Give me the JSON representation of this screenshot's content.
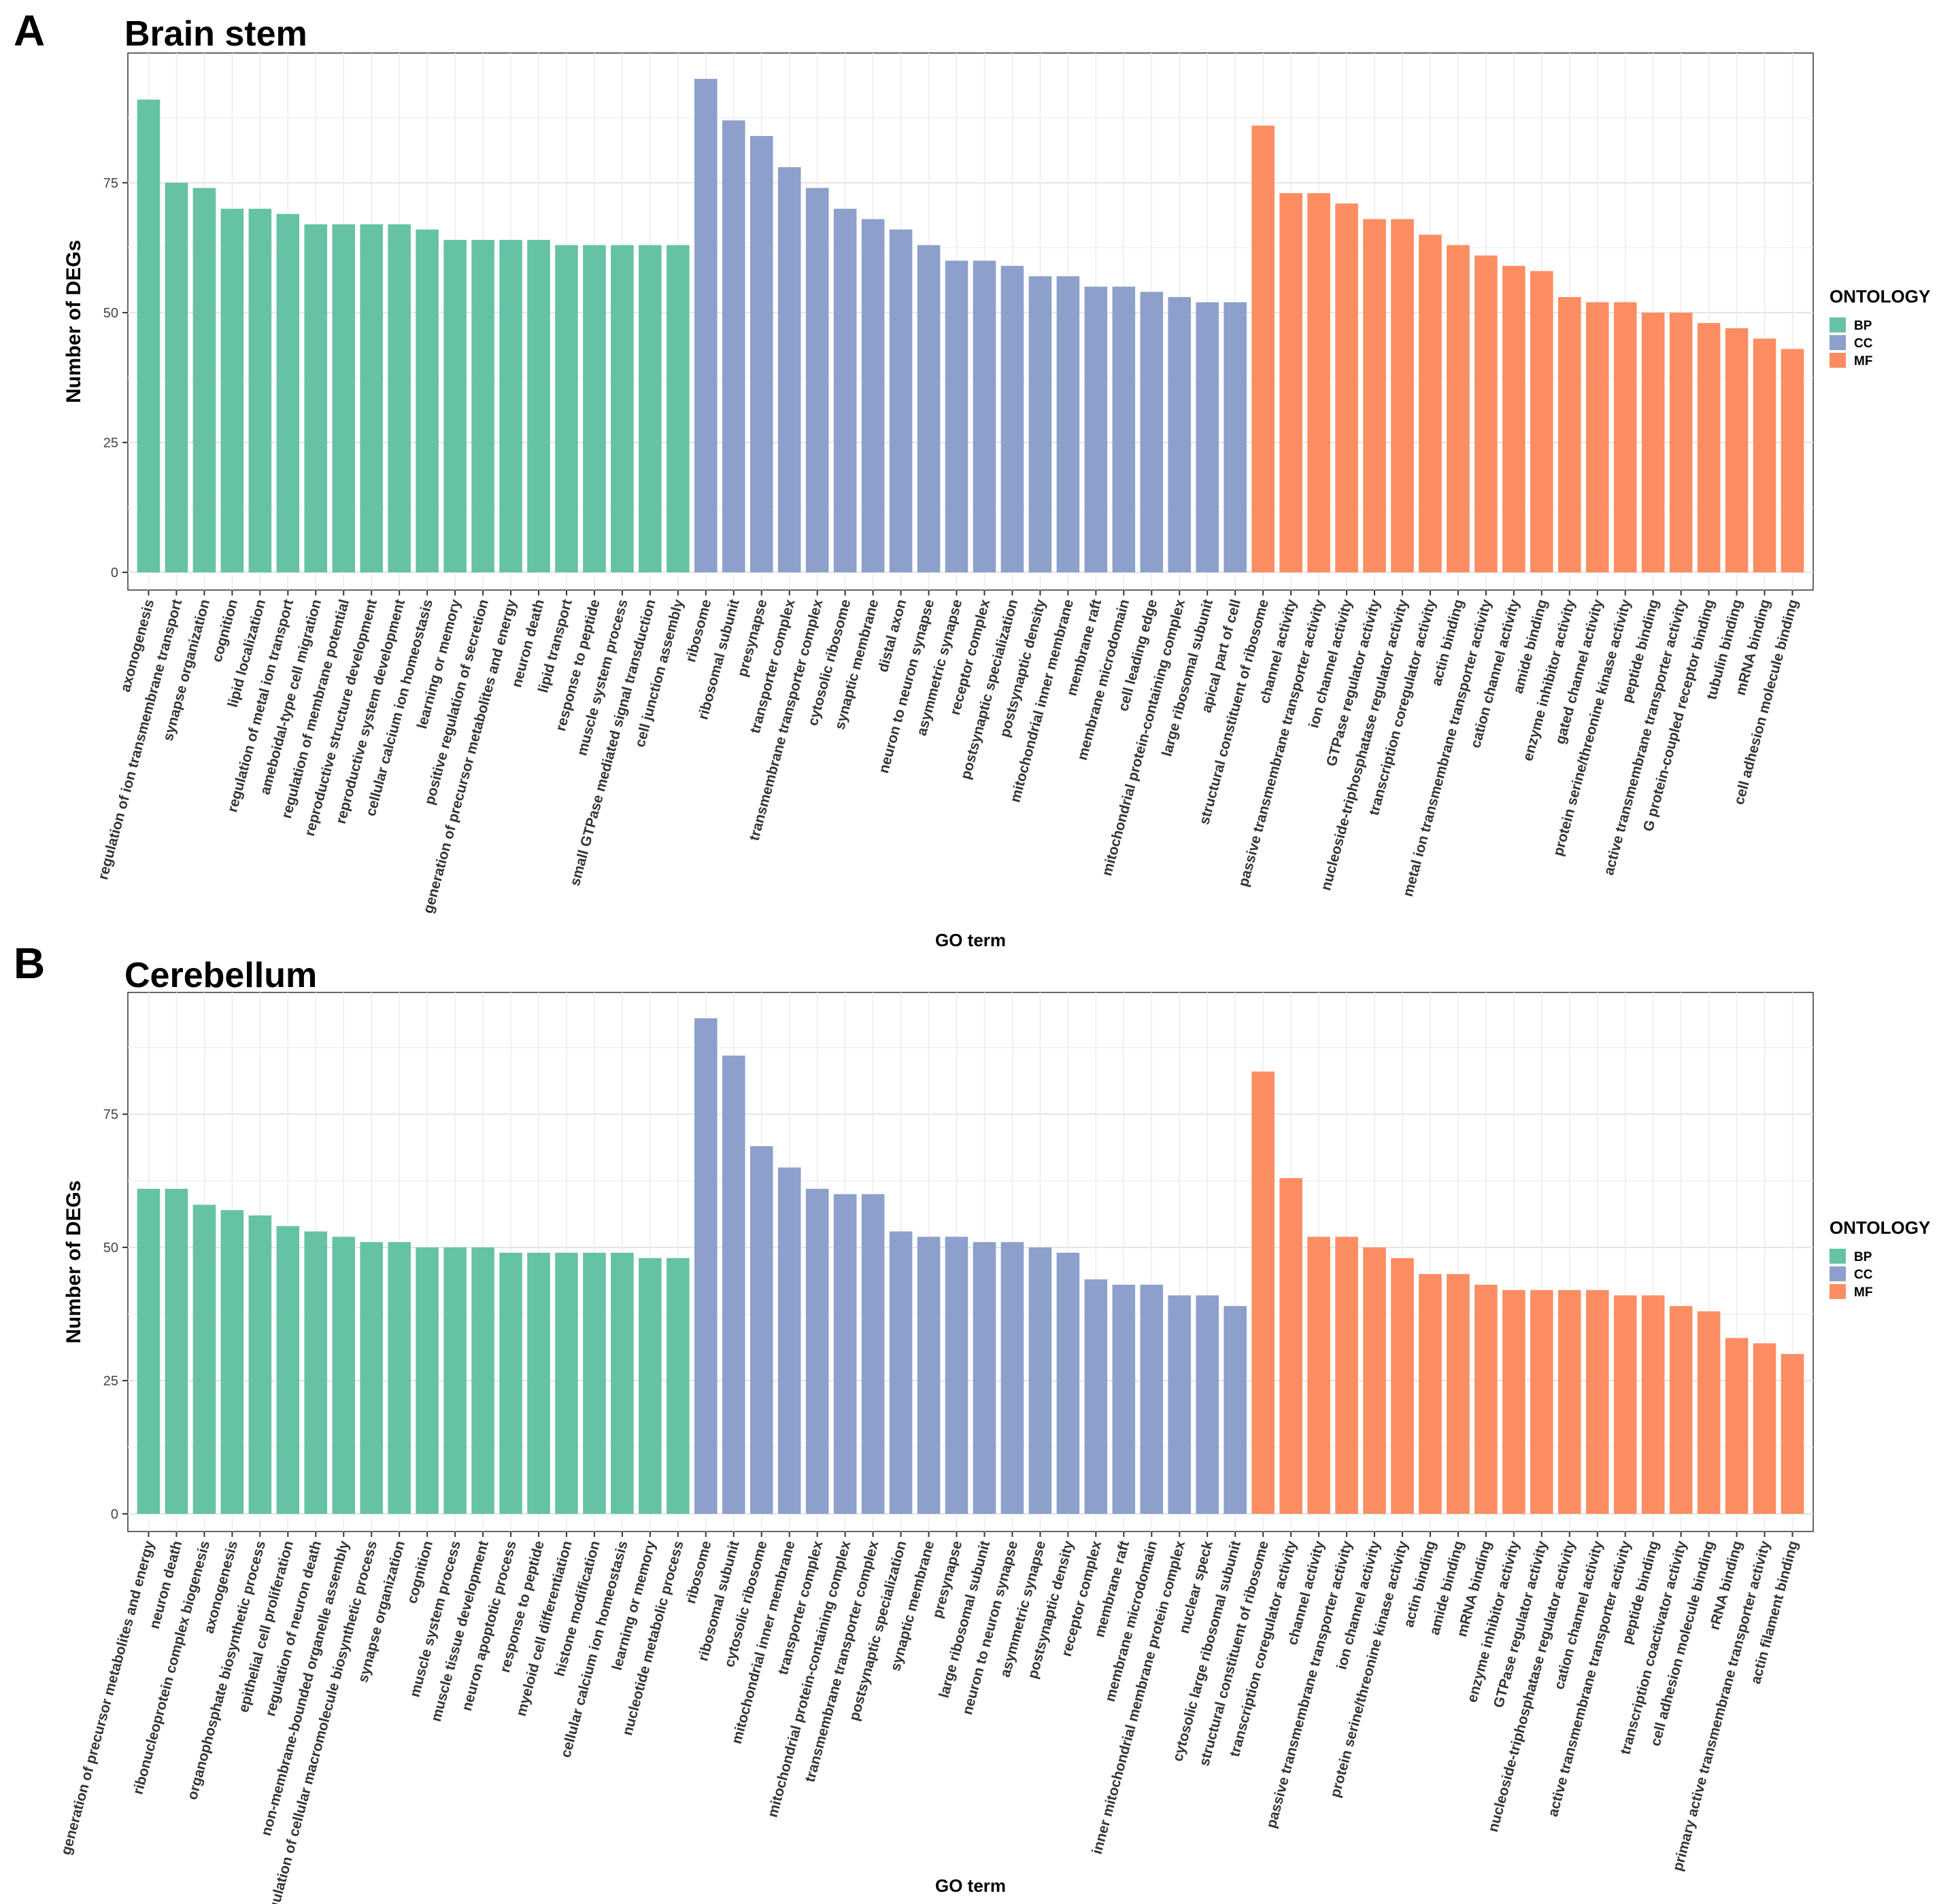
{
  "colors": {
    "BP": "#66c2a5",
    "CC": "#8da0cb",
    "MF": "#fc8d62"
  },
  "chart_data": [
    {
      "panel": "A",
      "type": "bar",
      "title": "Brain stem",
      "xlabel": "GO term",
      "ylabel": "Number of DEGs",
      "ylim": [
        0,
        95
      ],
      "yticks": [
        0,
        25,
        50,
        75
      ],
      "legend": {
        "title": "ONTOLOGY",
        "entries": [
          "BP",
          "CC",
          "MF"
        ],
        "position": "right"
      },
      "grid": true,
      "bars": [
        {
          "category": "axonogenesis",
          "ontology": "BP",
          "value": 91
        },
        {
          "category": "regulation of ion transmembrane transport",
          "ontology": "BP",
          "value": 75
        },
        {
          "category": "synapse organization",
          "ontology": "BP",
          "value": 74
        },
        {
          "category": "cognition",
          "ontology": "BP",
          "value": 70
        },
        {
          "category": "lipid localization",
          "ontology": "BP",
          "value": 70
        },
        {
          "category": "regulation of metal ion transport",
          "ontology": "BP",
          "value": 69
        },
        {
          "category": "ameboidal-type cell migration",
          "ontology": "BP",
          "value": 67
        },
        {
          "category": "regulation of membrane potential",
          "ontology": "BP",
          "value": 67
        },
        {
          "category": "reproductive structure development",
          "ontology": "BP",
          "value": 67
        },
        {
          "category": "reproductive system development",
          "ontology": "BP",
          "value": 67
        },
        {
          "category": "cellular calcium ion homeostasis",
          "ontology": "BP",
          "value": 66
        },
        {
          "category": "learning or memory",
          "ontology": "BP",
          "value": 64
        },
        {
          "category": "positive regulation of secretion",
          "ontology": "BP",
          "value": 64
        },
        {
          "category": "generation of precursor metabolites and energy",
          "ontology": "BP",
          "value": 64
        },
        {
          "category": "neuron death",
          "ontology": "BP",
          "value": 64
        },
        {
          "category": "lipid transport",
          "ontology": "BP",
          "value": 63
        },
        {
          "category": "response to peptide",
          "ontology": "BP",
          "value": 63
        },
        {
          "category": "muscle system process",
          "ontology": "BP",
          "value": 63
        },
        {
          "category": "small GTPase mediated signal transduction",
          "ontology": "BP",
          "value": 63
        },
        {
          "category": "cell junction assembly",
          "ontology": "BP",
          "value": 63
        },
        {
          "category": "ribosome",
          "ontology": "CC",
          "value": 95
        },
        {
          "category": "ribosomal subunit",
          "ontology": "CC",
          "value": 87
        },
        {
          "category": "presynapse",
          "ontology": "CC",
          "value": 84
        },
        {
          "category": "transporter complex",
          "ontology": "CC",
          "value": 78
        },
        {
          "category": "transmembrane transporter complex",
          "ontology": "CC",
          "value": 74
        },
        {
          "category": "cytosolic ribosome",
          "ontology": "CC",
          "value": 70
        },
        {
          "category": "synaptic membrane",
          "ontology": "CC",
          "value": 68
        },
        {
          "category": "distal axon",
          "ontology": "CC",
          "value": 66
        },
        {
          "category": "neuron to neuron synapse",
          "ontology": "CC",
          "value": 63
        },
        {
          "category": "asymmetric synapse",
          "ontology": "CC",
          "value": 60
        },
        {
          "category": "receptor complex",
          "ontology": "CC",
          "value": 60
        },
        {
          "category": "postsynaptic specialization",
          "ontology": "CC",
          "value": 59
        },
        {
          "category": "postsynaptic density",
          "ontology": "CC",
          "value": 57
        },
        {
          "category": "mitochondrial inner membrane",
          "ontology": "CC",
          "value": 57
        },
        {
          "category": "membrane raft",
          "ontology": "CC",
          "value": 55
        },
        {
          "category": "membrane microdomain",
          "ontology": "CC",
          "value": 55
        },
        {
          "category": "cell leading edge",
          "ontology": "CC",
          "value": 54
        },
        {
          "category": "mitochondrial protein-containing complex",
          "ontology": "CC",
          "value": 53
        },
        {
          "category": "large ribosomal subunit",
          "ontology": "CC",
          "value": 52
        },
        {
          "category": "apical part of cell",
          "ontology": "CC",
          "value": 52
        },
        {
          "category": "structural constituent of ribosome",
          "ontology": "MF",
          "value": 86
        },
        {
          "category": "channel activity",
          "ontology": "MF",
          "value": 73
        },
        {
          "category": "passive transmembrane transporter activity",
          "ontology": "MF",
          "value": 73
        },
        {
          "category": "ion channel activity",
          "ontology": "MF",
          "value": 71
        },
        {
          "category": "GTPase regulator activity",
          "ontology": "MF",
          "value": 68
        },
        {
          "category": "nucleoside-triphosphatase regulator activity",
          "ontology": "MF",
          "value": 68
        },
        {
          "category": "transcription coregulator activity",
          "ontology": "MF",
          "value": 65
        },
        {
          "category": "actin binding",
          "ontology": "MF",
          "value": 63
        },
        {
          "category": "metal ion transmembrane transporter activity",
          "ontology": "MF",
          "value": 61
        },
        {
          "category": "cation channel activity",
          "ontology": "MF",
          "value": 59
        },
        {
          "category": "amide binding",
          "ontology": "MF",
          "value": 58
        },
        {
          "category": "enzyme inhibitor activity",
          "ontology": "MF",
          "value": 53
        },
        {
          "category": "gated channel activity",
          "ontology": "MF",
          "value": 52
        },
        {
          "category": "protein serine/threonine kinase activity",
          "ontology": "MF",
          "value": 52
        },
        {
          "category": "peptide binding",
          "ontology": "MF",
          "value": 50
        },
        {
          "category": "active transmembrane transporter activity",
          "ontology": "MF",
          "value": 50
        },
        {
          "category": "G protein-coupled receptor binding",
          "ontology": "MF",
          "value": 48
        },
        {
          "category": "tubulin binding",
          "ontology": "MF",
          "value": 47
        },
        {
          "category": "mRNA binding",
          "ontology": "MF",
          "value": 45
        },
        {
          "category": "cell adhesion molecule binding",
          "ontology": "MF",
          "value": 43
        }
      ]
    },
    {
      "panel": "B",
      "type": "bar",
      "title": "Cerebellum",
      "xlabel": "GO term",
      "ylabel": "Number of DEGs",
      "ylim": [
        0,
        93
      ],
      "yticks": [
        0,
        25,
        50,
        75
      ],
      "legend": {
        "title": "ONTOLOGY",
        "entries": [
          "BP",
          "CC",
          "MF"
        ],
        "position": "right"
      },
      "grid": true,
      "bars": [
        {
          "category": "generation of precursor metabolites and energy",
          "ontology": "BP",
          "value": 61
        },
        {
          "category": "neuron death",
          "ontology": "BP",
          "value": 61
        },
        {
          "category": "ribonucleoprotein complex biogenesis",
          "ontology": "BP",
          "value": 58
        },
        {
          "category": "axonogenesis",
          "ontology": "BP",
          "value": 57
        },
        {
          "category": "organophosphate biosynthetic process",
          "ontology": "BP",
          "value": 56
        },
        {
          "category": "epithelial cell proliferation",
          "ontology": "BP",
          "value": 54
        },
        {
          "category": "regulation of neuron death",
          "ontology": "BP",
          "value": 53
        },
        {
          "category": "non-membrane-bounded organelle assembly",
          "ontology": "BP",
          "value": 52
        },
        {
          "category": "regulation of cellular macromolecule biosynthetic process",
          "ontology": "BP",
          "value": 51
        },
        {
          "category": "synapse organization",
          "ontology": "BP",
          "value": 51
        },
        {
          "category": "cognition",
          "ontology": "BP",
          "value": 50
        },
        {
          "category": "muscle system process",
          "ontology": "BP",
          "value": 50
        },
        {
          "category": "muscle tissue development",
          "ontology": "BP",
          "value": 50
        },
        {
          "category": "neuron apoptotic process",
          "ontology": "BP",
          "value": 49
        },
        {
          "category": "response to peptide",
          "ontology": "BP",
          "value": 49
        },
        {
          "category": "myeloid cell differentiation",
          "ontology": "BP",
          "value": 49
        },
        {
          "category": "histone modification",
          "ontology": "BP",
          "value": 49
        },
        {
          "category": "cellular calcium ion homeostasis",
          "ontology": "BP",
          "value": 49
        },
        {
          "category": "learning or memory",
          "ontology": "BP",
          "value": 48
        },
        {
          "category": "nucleotide metabolic process",
          "ontology": "BP",
          "value": 48
        },
        {
          "category": "ribosome",
          "ontology": "CC",
          "value": 93
        },
        {
          "category": "ribosomal subunit",
          "ontology": "CC",
          "value": 86
        },
        {
          "category": "cytosolic ribosome",
          "ontology": "CC",
          "value": 69
        },
        {
          "category": "mitochondrial inner membrane",
          "ontology": "CC",
          "value": 65
        },
        {
          "category": "transporter complex",
          "ontology": "CC",
          "value": 61
        },
        {
          "category": "mitochondrial protein-containing complex",
          "ontology": "CC",
          "value": 60
        },
        {
          "category": "transmembrane transporter complex",
          "ontology": "CC",
          "value": 60
        },
        {
          "category": "postsynaptic specialization",
          "ontology": "CC",
          "value": 53
        },
        {
          "category": "synaptic membrane",
          "ontology": "CC",
          "value": 52
        },
        {
          "category": "presynapse",
          "ontology": "CC",
          "value": 52
        },
        {
          "category": "large ribosomal subunit",
          "ontology": "CC",
          "value": 51
        },
        {
          "category": "neuron to neuron synapse",
          "ontology": "CC",
          "value": 51
        },
        {
          "category": "asymmetric synapse",
          "ontology": "CC",
          "value": 50
        },
        {
          "category": "postsynaptic density",
          "ontology": "CC",
          "value": 49
        },
        {
          "category": "receptor complex",
          "ontology": "CC",
          "value": 44
        },
        {
          "category": "membrane raft",
          "ontology": "CC",
          "value": 43
        },
        {
          "category": "membrane microdomain",
          "ontology": "CC",
          "value": 43
        },
        {
          "category": "inner mitochondrial membrane protein complex",
          "ontology": "CC",
          "value": 41
        },
        {
          "category": "nuclear speck",
          "ontology": "CC",
          "value": 41
        },
        {
          "category": "cytosolic large ribosomal subunit",
          "ontology": "CC",
          "value": 39
        },
        {
          "category": "structural constituent of ribosome",
          "ontology": "MF",
          "value": 83
        },
        {
          "category": "transcription coregulator activity",
          "ontology": "MF",
          "value": 63
        },
        {
          "category": "channel activity",
          "ontology": "MF",
          "value": 52
        },
        {
          "category": "passive transmembrane transporter activity",
          "ontology": "MF",
          "value": 52
        },
        {
          "category": "ion channel activity",
          "ontology": "MF",
          "value": 50
        },
        {
          "category": "protein serine/threonine kinase activity",
          "ontology": "MF",
          "value": 48
        },
        {
          "category": "actin binding",
          "ontology": "MF",
          "value": 45
        },
        {
          "category": "amide binding",
          "ontology": "MF",
          "value": 45
        },
        {
          "category": "mRNA binding",
          "ontology": "MF",
          "value": 43
        },
        {
          "category": "enzyme inhibitor activity",
          "ontology": "MF",
          "value": 42
        },
        {
          "category": "GTPase regulator activity",
          "ontology": "MF",
          "value": 42
        },
        {
          "category": "nucleoside-triphosphatase regulator activity",
          "ontology": "MF",
          "value": 42
        },
        {
          "category": "cation channel activity",
          "ontology": "MF",
          "value": 42
        },
        {
          "category": "active transmembrane transporter activity",
          "ontology": "MF",
          "value": 41
        },
        {
          "category": "peptide binding",
          "ontology": "MF",
          "value": 41
        },
        {
          "category": "transcription coactivator activity",
          "ontology": "MF",
          "value": 39
        },
        {
          "category": "cell adhesion molecule binding",
          "ontology": "MF",
          "value": 38
        },
        {
          "category": "rRNA binding",
          "ontology": "MF",
          "value": 33
        },
        {
          "category": "primary active transmembrane transporter activity",
          "ontology": "MF",
          "value": 32
        },
        {
          "category": "actin filament binding",
          "ontology": "MF",
          "value": 30
        }
      ]
    }
  ]
}
